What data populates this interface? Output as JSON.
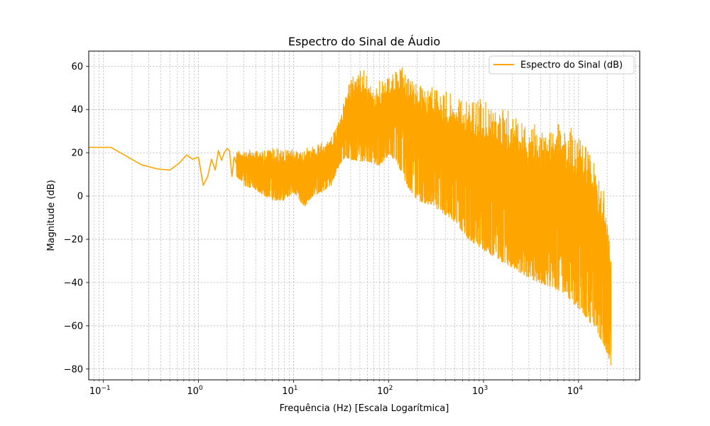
{
  "chart_data": {
    "type": "line",
    "title": "Espectro do Sinal de Áudio",
    "xlabel": "Frequência (Hz) [Escala Logarítmica]",
    "ylabel": "Magnitude (dB)",
    "xscale": "log",
    "xlim": [
      0.07,
      44000
    ],
    "ylim": [
      -85,
      67
    ],
    "grid": true,
    "grid_style": "dashed",
    "legend_position": "top-right",
    "x_ticks": [
      {
        "value": 0.1,
        "label": "10",
        "exp": "−1"
      },
      {
        "value": 1,
        "label": "10",
        "exp": "0"
      },
      {
        "value": 10,
        "label": "10",
        "exp": "1"
      },
      {
        "value": 100,
        "label": "10",
        "exp": "2"
      },
      {
        "value": 1000,
        "label": "10",
        "exp": "3"
      },
      {
        "value": 10000,
        "label": "10",
        "exp": "4"
      }
    ],
    "y_ticks": [
      {
        "value": 60,
        "label": "60"
      },
      {
        "value": 40,
        "label": "40"
      },
      {
        "value": 20,
        "label": "20"
      },
      {
        "value": 0,
        "label": "0"
      },
      {
        "value": -20,
        "label": "−20"
      },
      {
        "value": -40,
        "label": "−40"
      },
      {
        "value": -60,
        "label": "−60"
      },
      {
        "value": -80,
        "label": "−80"
      }
    ],
    "series": [
      {
        "name": "Espectro do Sinal (dB)",
        "color": "#ffa500",
        "low_freq_points": {
          "x": [
            0.07,
            0.08,
            0.1,
            0.12,
            0.25,
            0.37,
            0.5,
            0.62,
            0.75,
            0.87,
            1.0,
            1.12,
            1.25,
            1.37,
            1.5,
            1.62,
            1.75,
            1.87,
            2.0,
            2.12,
            2.25,
            2.37,
            2.5
          ],
          "y": [
            22.5,
            22.5,
            22.5,
            22.5,
            14.5,
            12.5,
            12,
            15,
            19,
            17,
            18,
            5,
            9,
            17,
            12,
            21,
            16.5,
            20,
            22,
            21,
            9,
            18,
            15
          ]
        },
        "envelope": {
          "x": [
            2.5,
            3,
            4,
            5,
            6,
            8,
            10,
            13,
            16,
            20,
            25,
            30,
            35,
            40,
            50,
            60,
            70,
            80,
            100,
            120,
            140,
            160,
            200,
            300,
            500,
            700,
            1000,
            1500,
            2000,
            3000,
            5000,
            7000,
            10000,
            13000,
            15000,
            17000,
            19000,
            20000,
            21000,
            22000
          ],
          "max": [
            21,
            21.5,
            21.5,
            21,
            22,
            22,
            21.5,
            23,
            23,
            26,
            28,
            36,
            46,
            56,
            60,
            57,
            48,
            53,
            59,
            59,
            61,
            57,
            54,
            51,
            47,
            45,
            45,
            41,
            39,
            35,
            34,
            34,
            30,
            22,
            16,
            9,
            0,
            -8,
            -14,
            -20
          ],
          "min": [
            9,
            5,
            3,
            0,
            -2,
            -2,
            2,
            -5,
            0,
            2,
            5,
            14,
            18,
            17,
            16,
            16,
            15,
            14,
            19,
            16,
            10,
            4,
            -2,
            -5,
            -12,
            -20,
            -25,
            -30,
            -33,
            -38,
            -42,
            -45,
            -52,
            -58,
            -62,
            -66,
            -70,
            -73,
            -76,
            -79
          ]
        }
      }
    ]
  }
}
